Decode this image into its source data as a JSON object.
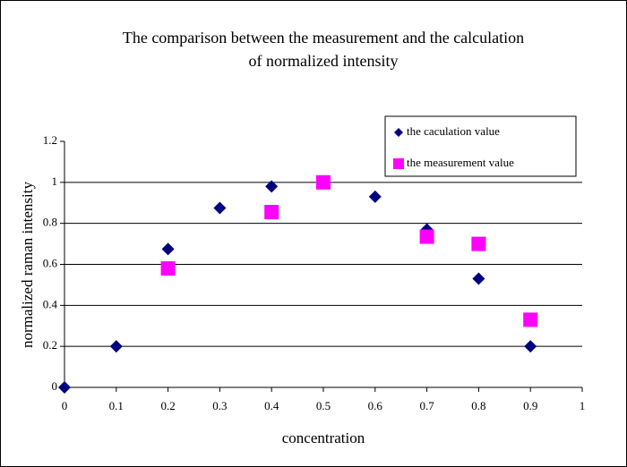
{
  "chart_data": {
    "type": "scatter",
    "title": [
      "The comparison between the measurement and the calculation",
      "of normalized intensity"
    ],
    "x_label": "concentration",
    "y_label": "normalized raman intensity",
    "series": [
      {
        "name": "the caculation value",
        "color": "#000080",
        "marker": "diamond",
        "x": [
          0,
          0.1,
          0.2,
          0.3,
          0.4,
          0.6,
          0.7,
          0.8,
          0.9
        ],
        "values": [
          0,
          0.2,
          0.675,
          0.875,
          0.98,
          0.93,
          0.77,
          0.53,
          0.2
        ]
      },
      {
        "name": "the measurement value",
        "color": "#ff00ff",
        "marker": "square",
        "x": [
          0.2,
          0.4,
          0.5,
          0.7,
          0.8,
          0.9
        ],
        "values": [
          0.58,
          0.855,
          1.0,
          0.735,
          0.7,
          0.33
        ]
      }
    ],
    "xlim": [
      0,
      1
    ],
    "xticks": [
      0,
      0.1,
      0.2,
      0.3,
      0.4,
      0.5,
      0.6,
      0.7,
      0.8,
      0.9,
      1
    ],
    "ylim": [
      0,
      1.2
    ],
    "yticks": [
      0,
      0.2,
      0.4,
      0.6,
      0.8,
      1,
      1.2
    ],
    "grid": true,
    "legend": "upper right"
  }
}
